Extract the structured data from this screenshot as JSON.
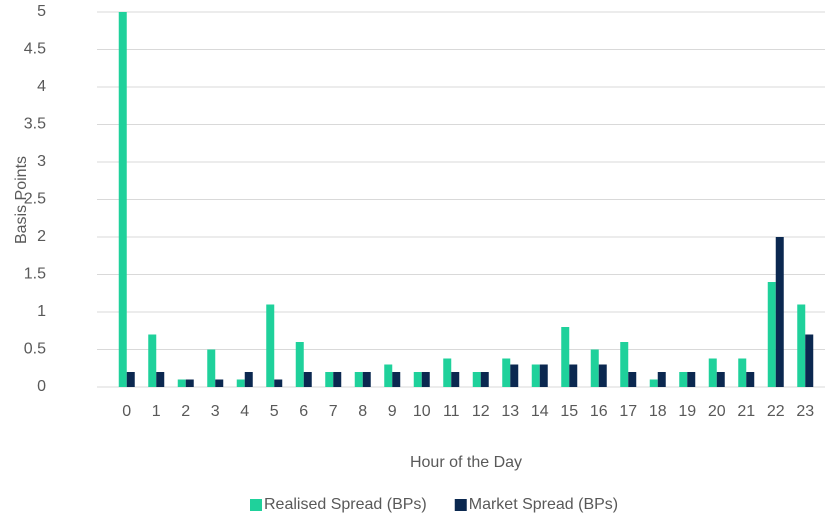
{
  "chart_data": {
    "type": "bar",
    "x_label": "Hour of the Day",
    "y_label": "Basis Points",
    "categories": [
      "0",
      "1",
      "2",
      "3",
      "4",
      "5",
      "6",
      "7",
      "8",
      "9",
      "10",
      "11",
      "12",
      "13",
      "14",
      "15",
      "16",
      "17",
      "18",
      "19",
      "20",
      "21",
      "22",
      "23"
    ],
    "series": [
      {
        "name": "Realised Spread (BPs)",
        "color": "#1fd19b",
        "values": [
          5,
          0.7,
          0.1,
          0.5,
          0.1,
          1.1,
          0.6,
          0.2,
          0.2,
          0.3,
          0.2,
          0.38,
          0.2,
          0.38,
          0.3,
          0.8,
          0.5,
          0.6,
          0.1,
          0.2,
          0.38,
          0.38,
          1.4,
          1.1
        ]
      },
      {
        "name": "Market Spread (BPs)",
        "color": "#0b2850",
        "values": [
          0.2,
          0.2,
          0.1,
          0.1,
          0.2,
          0.1,
          0.2,
          0.2,
          0.2,
          0.2,
          0.2,
          0.2,
          0.2,
          0.3,
          0.3,
          0.3,
          0.3,
          0.2,
          0.2,
          0.2,
          0.2,
          0.2,
          2,
          0.7
        ]
      }
    ],
    "ylim": [
      0,
      5
    ],
    "yticks": [
      0,
      0.5,
      1,
      1.5,
      2,
      2.5,
      3,
      3.5,
      4,
      4.5,
      5
    ],
    "grid": true,
    "legend": "bottom"
  }
}
